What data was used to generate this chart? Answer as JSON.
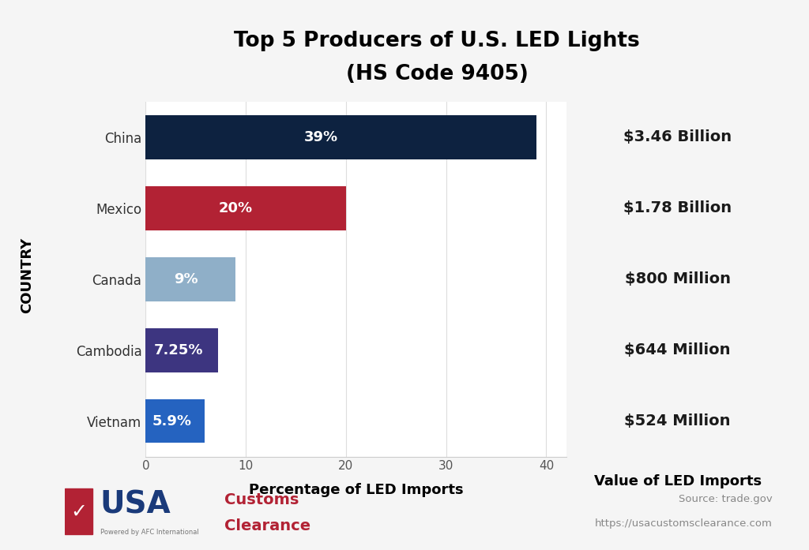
{
  "title_line1": "Top 5 Producers of U.S. LED Lights",
  "title_line2": "(HS Code 9405)",
  "countries": [
    "Vietnam",
    "Cambodia",
    "Canada",
    "Mexico",
    "China"
  ],
  "percentages": [
    5.9,
    7.25,
    9.0,
    20.0,
    39.0
  ],
  "pct_labels": [
    "5.9%",
    "7.25%",
    "9%",
    "20%",
    "39%"
  ],
  "values": [
    "$524 Million",
    "$644 Million",
    "$800 Million",
    "$1.78 Billion",
    "$3.46 Billion"
  ],
  "bar_colors": [
    "#2563C0",
    "#3D3580",
    "#8FAFC8",
    "#B22234",
    "#0D2240"
  ],
  "xlabel": "Percentage of LED Imports",
  "ylabel": "COUNTRY",
  "value_label": "Value of LED Imports",
  "xlim": [
    0,
    42
  ],
  "xticks": [
    0,
    10,
    20,
    30,
    40
  ],
  "background_color": "#f5f5f5",
  "chart_bg": "#ffffff",
  "panel_color": "#B8C8D8",
  "source_text": "Source: trade.gov",
  "url_text": "https://usacustomsclearance.com",
  "title_fontsize": 19,
  "axis_label_fontsize": 13,
  "bar_label_fontsize": 13,
  "value_fontsize": 14,
  "country_fontsize": 12,
  "left_strip_color": "#e8e8e8",
  "usa_color": "#1a3a7a",
  "customs_color": "#B22234",
  "checkbox_color": "#B22234"
}
